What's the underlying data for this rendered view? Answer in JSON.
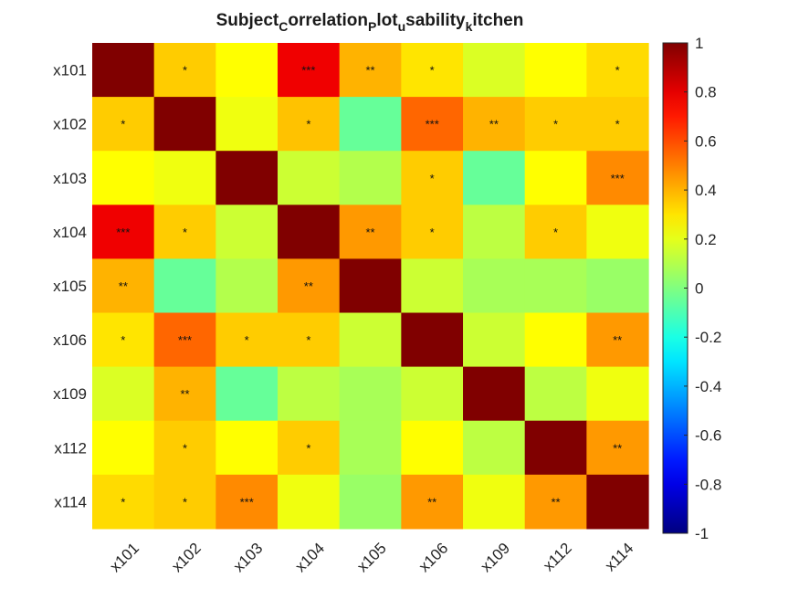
{
  "chart_data": {
    "type": "heatmap",
    "title": {
      "parts": [
        {
          "text": "Subject",
          "sub": false
        },
        {
          "text": "C",
          "sub": true
        },
        {
          "text": "orrelation",
          "sub": false
        },
        {
          "text": "P",
          "sub": true
        },
        {
          "text": "lot",
          "sub": false
        },
        {
          "text": "u",
          "sub": true
        },
        {
          "text": "sability",
          "sub": false
        },
        {
          "text": "k",
          "sub": true
        },
        {
          "text": "itchen",
          "sub": false
        }
      ]
    },
    "row_labels": [
      "x101",
      "x102",
      "x103",
      "x104",
      "x105",
      "x106",
      "x109",
      "x112",
      "x114"
    ],
    "col_labels": [
      "x101",
      "x102",
      "x103",
      "x104",
      "x105",
      "x106",
      "x109",
      "x112",
      "x114"
    ],
    "values": [
      [
        1.0,
        0.35,
        0.25,
        0.78,
        0.4,
        0.3,
        0.18,
        0.25,
        0.32
      ],
      [
        0.35,
        1.0,
        0.22,
        0.37,
        -0.05,
        0.55,
        0.4,
        0.35,
        0.35
      ],
      [
        0.25,
        0.22,
        1.0,
        0.15,
        0.1,
        0.35,
        -0.05,
        0.25,
        0.48
      ],
      [
        0.78,
        0.35,
        0.15,
        1.0,
        0.45,
        0.35,
        0.12,
        0.35,
        0.22
      ],
      [
        0.4,
        -0.05,
        0.1,
        0.45,
        1.0,
        0.15,
        0.08,
        0.08,
        0.05
      ],
      [
        0.3,
        0.55,
        0.35,
        0.35,
        0.15,
        1.0,
        0.15,
        0.25,
        0.45
      ],
      [
        0.18,
        0.4,
        -0.05,
        0.12,
        0.08,
        0.15,
        1.0,
        0.12,
        0.22
      ],
      [
        0.25,
        0.35,
        0.25,
        0.35,
        0.08,
        0.25,
        0.12,
        1.0,
        0.45
      ],
      [
        0.32,
        0.35,
        0.48,
        0.22,
        0.05,
        0.45,
        0.22,
        0.45,
        1.0
      ]
    ],
    "annotations": [
      [
        "",
        "*",
        "",
        "***",
        "**",
        "*",
        "",
        "",
        "*"
      ],
      [
        "*",
        "",
        "",
        "*",
        "",
        "***",
        "**",
        "*",
        "*"
      ],
      [
        "",
        "",
        "",
        "",
        "",
        "*",
        "",
        "",
        "***"
      ],
      [
        "***",
        "*",
        "",
        "",
        "**",
        "*",
        "",
        "*",
        ""
      ],
      [
        "**",
        "",
        "",
        "**",
        "",
        "",
        "",
        "",
        ""
      ],
      [
        "*",
        "***",
        "*",
        "*",
        "",
        "",
        "",
        "",
        "**"
      ],
      [
        "",
        "**",
        "",
        "",
        "",
        "",
        "",
        "",
        ""
      ],
      [
        "",
        "*",
        "",
        "*",
        "",
        "",
        "",
        "",
        "**"
      ],
      [
        "*",
        "*",
        "***",
        "",
        "",
        "**",
        "",
        "**",
        ""
      ]
    ],
    "colorbar": {
      "colormap": "jet",
      "min": -1,
      "max": 1,
      "ticks": [
        1,
        0.8,
        0.6,
        0.4,
        0.2,
        0,
        -0.2,
        -0.4,
        -0.6,
        -0.8,
        -1
      ],
      "tick_labels": [
        "1",
        "0.8",
        "0.6",
        "0.4",
        "0.2",
        "0",
        "-0.2",
        "-0.4",
        "-0.6",
        "-0.8",
        "-1"
      ]
    },
    "x_tick_rotation_deg": 45,
    "grid": false
  }
}
